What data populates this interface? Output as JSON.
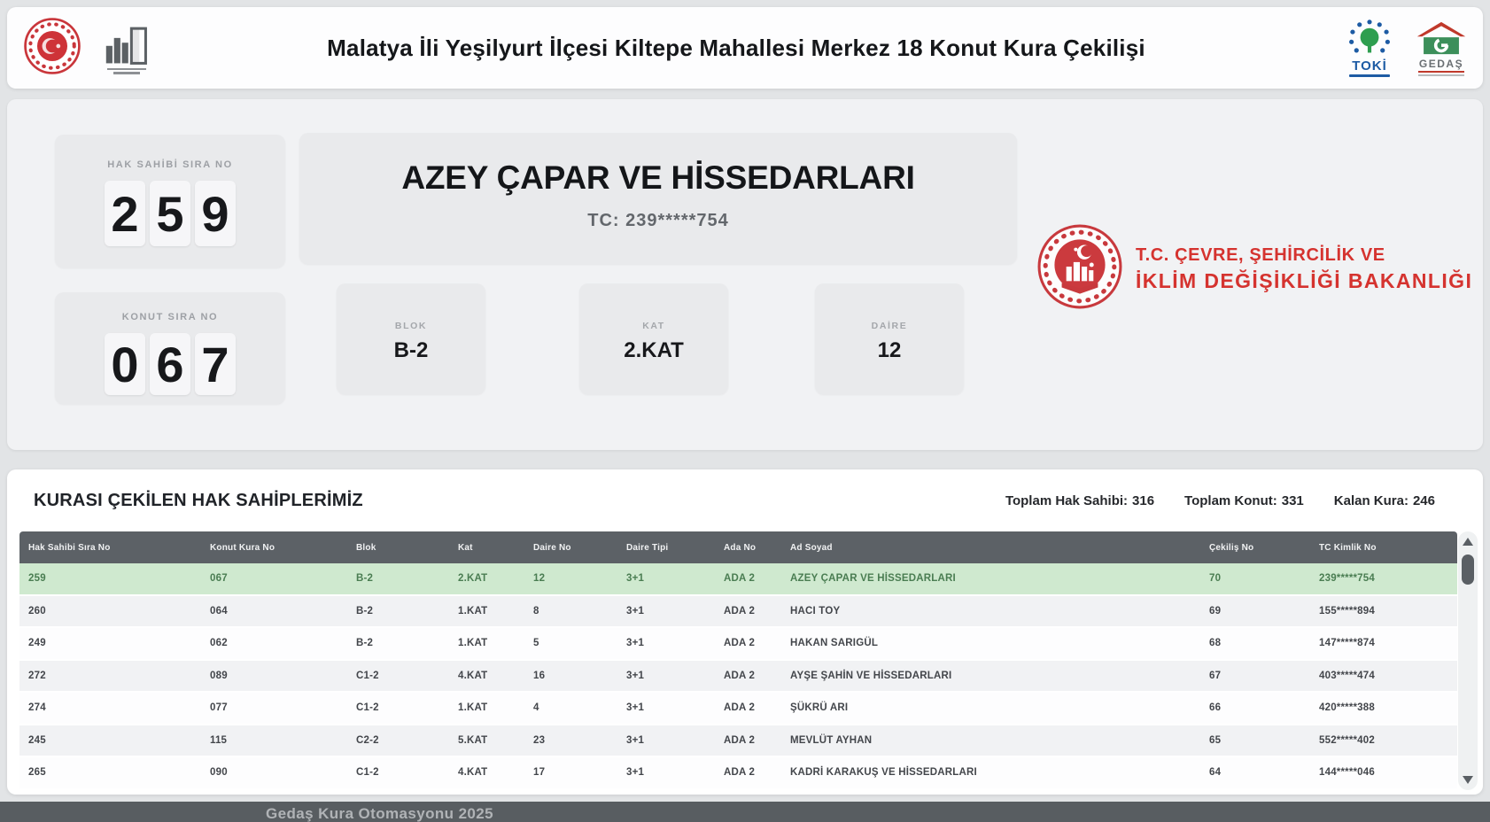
{
  "header": {
    "title": "Malatya İli Yeşilyurt İlçesi Kiltepe Mahallesi Merkez 18 Konut Kura Çekilişi",
    "toki_label": "TOKİ",
    "gedas_label": "GEDAŞ"
  },
  "draw_panel": {
    "hak_sahibi_label": "HAK SAHİBİ SIRA NO",
    "hak_sahibi_digits": [
      "2",
      "5",
      "9"
    ],
    "konut_label": "KONUT SIRA NO",
    "konut_digits": [
      "0",
      "6",
      "7"
    ],
    "winner_name": "AZEY ÇAPAR VE HİSSEDARLARI",
    "winner_tc": "TC: 239*****754",
    "blok_label": "BLOK",
    "blok_value": "B-2",
    "kat_label": "KAT",
    "kat_value": "2.KAT",
    "daire_label": "DAİRE",
    "daire_value": "12",
    "ministry_line1": "T.C. ÇEVRE, ŞEHİRCİLİK VE",
    "ministry_line2": "İKLİM DEĞİŞİKLİĞİ BAKANLIĞI"
  },
  "results": {
    "title": "KURASI ÇEKİLEN HAK SAHİPLERİMİZ",
    "totals": [
      {
        "label": "Toplam Hak Sahibi:",
        "value": "316"
      },
      {
        "label": "Toplam Konut:",
        "value": "331"
      },
      {
        "label": "Kalan Kura:",
        "value": "246"
      }
    ],
    "columns": [
      "Hak Sahibi Sıra No",
      "Konut Kura No",
      "Blok",
      "Kat",
      "Daire No",
      "Daire Tipi",
      "Ada No",
      "Ad Soyad",
      "Çekiliş No",
      "TC Kimlik No"
    ],
    "highlight_row": 0,
    "rows": [
      [
        "259",
        "067",
        "B-2",
        "2.KAT",
        "12",
        "3+1",
        "ADA 2",
        "AZEY ÇAPAR VE HİSSEDARLARI",
        "70",
        "239*****754"
      ],
      [
        "260",
        "064",
        "B-2",
        "1.KAT",
        "8",
        "3+1",
        "ADA 2",
        "HACI TOY",
        "69",
        "155*****894"
      ],
      [
        "249",
        "062",
        "B-2",
        "1.KAT",
        "5",
        "3+1",
        "ADA 2",
        "HAKAN SARIGÜL",
        "68",
        "147*****874"
      ],
      [
        "272",
        "089",
        "C1-2",
        "4.KAT",
        "16",
        "3+1",
        "ADA 2",
        "AYŞE ŞAHİN VE HİSSEDARLARI",
        "67",
        "403*****474"
      ],
      [
        "274",
        "077",
        "C1-2",
        "1.KAT",
        "4",
        "3+1",
        "ADA 2",
        "ŞÜKRÜ ARI",
        "66",
        "420*****388"
      ],
      [
        "245",
        "115",
        "C2-2",
        "5.KAT",
        "23",
        "3+1",
        "ADA 2",
        "MEVLÜT AYHAN",
        "65",
        "552*****402"
      ],
      [
        "265",
        "090",
        "C1-2",
        "4.KAT",
        "17",
        "3+1",
        "ADA 2",
        "KADRİ KARAKUŞ VE HİSSEDARLARI",
        "64",
        "144*****046"
      ]
    ]
  },
  "footer": {
    "text": "Gedaş Kura Otomasyonu 2025"
  }
}
